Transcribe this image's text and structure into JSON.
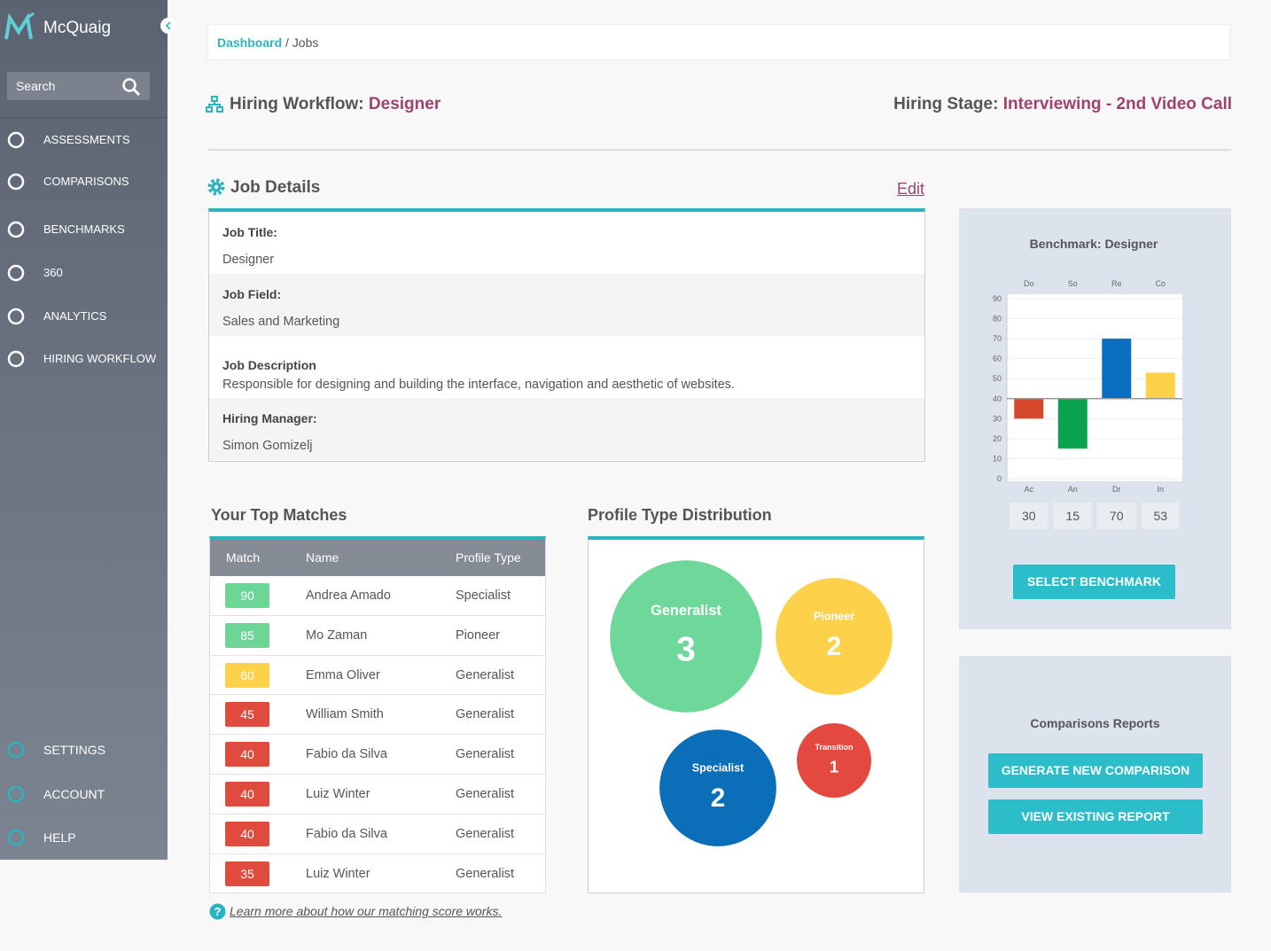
{
  "sidebar": {
    "brand": "McQuaig",
    "search": "Search",
    "nav": [
      "ASSESSMENTS",
      "COMPARISONS",
      "BENCHMARKS",
      "360",
      "ANALYTICS",
      "HIRING WORKFLOW"
    ],
    "bottom_nav": [
      "SETTINGS",
      "ACCOUNT",
      "HELP"
    ]
  },
  "breadcrumb": {
    "items": [
      "Dashboard",
      "Jobs"
    ],
    "separator": "/"
  },
  "header": {
    "workflow_label": "Hiring Workflow:",
    "workflow_value": "Designer",
    "stage_label": "Hiring Stage:",
    "stage_value": "Interviewing - 2nd Video Call"
  },
  "job_details": {
    "title": "Job Details",
    "edit": "Edit",
    "fields": [
      {
        "label": "Job Title:",
        "value": "Designer"
      },
      {
        "label": "Job Field:",
        "value": "Sales and Marketing"
      },
      {
        "label": "Job Description",
        "value": "Responsible for designing and building the interface, navigation and aesthetic of websites."
      },
      {
        "label": "Hiring Manager:",
        "value": "Simon Gomizelj"
      }
    ]
  },
  "top_matches": {
    "title": "Your Top Matches",
    "columns": [
      "Match",
      "Name",
      "Profile Type"
    ],
    "rows": [
      {
        "match": 90,
        "name": "Andrea Amado",
        "profile_type": "Specialist",
        "color": "#6dd596"
      },
      {
        "match": 85,
        "name": "Mo Zaman",
        "profile_type": "Pioneer",
        "color": "#6dd596"
      },
      {
        "match": 60,
        "name": "Emma Oliver",
        "profile_type": "Generalist",
        "color": "#fdd14a"
      },
      {
        "match": 45,
        "name": "William Smith",
        "profile_type": "Generalist",
        "color": "#e04b3f"
      },
      {
        "match": 40,
        "name": "Fabio da Silva",
        "profile_type": "Generalist",
        "color": "#e04b3f"
      },
      {
        "match": 40,
        "name": "Luiz Winter",
        "profile_type": "Generalist",
        "color": "#e04b3f"
      },
      {
        "match": 40,
        "name": "Fabio da Silva",
        "profile_type": "Generalist",
        "color": "#e04b3f"
      },
      {
        "match": 35,
        "name": "Luiz Winter",
        "profile_type": "Generalist",
        "color": "#e04b3f"
      }
    ],
    "help_link": "Learn more about how our matching score works."
  },
  "profile_distribution": {
    "title": "Profile Type Distribution",
    "profiles": [
      {
        "name": "Generalist",
        "count": 3,
        "color": "#6ed89a"
      },
      {
        "name": "Pioneer",
        "count": 2,
        "color": "#fdd14a"
      },
      {
        "name": "Specialist",
        "count": 2,
        "color": "#0a6fb8"
      },
      {
        "name": "Transition",
        "count": 1,
        "color": "#e3493f"
      }
    ]
  },
  "chart_data": {
    "type": "bar",
    "title": "Benchmark: Designer",
    "categories_top": [
      "Do",
      "So",
      "Re",
      "Co"
    ],
    "categories": [
      "Ac",
      "An",
      "Dr",
      "In"
    ],
    "values": [
      30,
      15,
      70,
      53
    ],
    "colors": [
      "#d5482b",
      "#0aa24c",
      "#0a6fc0",
      "#fdd14a"
    ],
    "baseline": 40,
    "ylim": [
      0,
      90
    ],
    "yticks": [
      0,
      10,
      20,
      30,
      40,
      50,
      60,
      70,
      80,
      90
    ],
    "grid": true
  },
  "benchmark_button": "SELECT BENCHMARK",
  "comparisons": {
    "title": "Comparisons Reports",
    "buttons": [
      "GENERATE NEW COMPARISON",
      "VIEW EXISTING REPORT"
    ]
  }
}
